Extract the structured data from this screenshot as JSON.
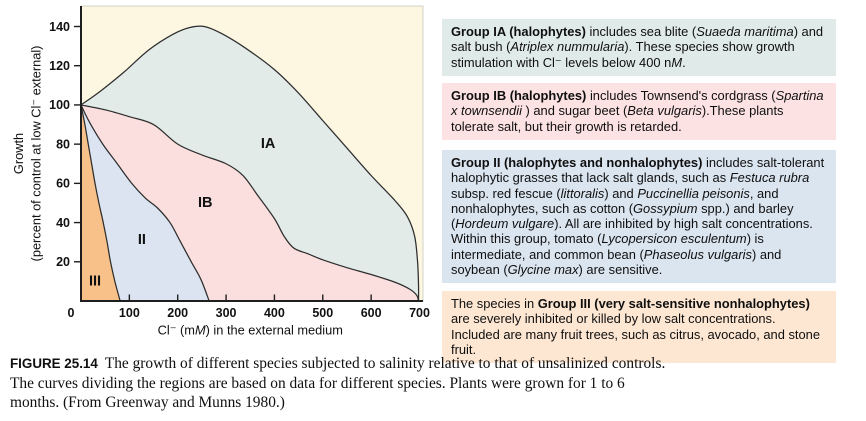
{
  "figure": {
    "caption": [
      {
        "t": "FIGURE 25.14",
        "b": true,
        "sans": true
      },
      {
        "t": "The growth of different species subjected to salinity relative to that of unsalinized controls. The curves dividing the regions are based on data for different species. Plants were grown for 1 to 6 months. (From Greenway and Munns 1980.)"
      }
    ]
  },
  "chart_data": {
    "type": "area",
    "title": "",
    "xlabel_segments": [
      {
        "t": "Cl⁻ (m"
      },
      {
        "t": "M",
        "i": true
      },
      {
        "t": ") in the external medium"
      }
    ],
    "ylabel_line1": "Growth",
    "ylabel_line2": "(percent of control at low Cl⁻ external)",
    "xlim": [
      0,
      700
    ],
    "ylim": [
      0,
      140
    ],
    "x_ticks": [
      0,
      100,
      200,
      300,
      400,
      500,
      600,
      700
    ],
    "y_ticks": [
      20,
      40,
      60,
      80,
      100,
      120,
      140
    ],
    "grid": false,
    "plot_bg": "#fdf6e1",
    "axis_color": "#1e1e1e",
    "curve_color": "#2e2e2e",
    "tick_label_color": "#111111",
    "regions": [
      {
        "label": "IA",
        "fill": "#e2ebe8",
        "label_pos": [
          387,
          80
        ],
        "boundary": [
          [
            0,
            100
          ],
          [
            40,
            107
          ],
          [
            90,
            117
          ],
          [
            140,
            128
          ],
          [
            190,
            136
          ],
          [
            225,
            139.5
          ],
          [
            255,
            140
          ],
          [
            290,
            136.5
          ],
          [
            340,
            129
          ],
          [
            400,
            118
          ],
          [
            450,
            106
          ],
          [
            500,
            92
          ],
          [
            550,
            78
          ],
          [
            600,
            64
          ],
          [
            650,
            51
          ],
          [
            675,
            43
          ],
          [
            690,
            33
          ],
          [
            696,
            20
          ],
          [
            698,
            8
          ],
          [
            698,
            0
          ]
        ]
      },
      {
        "label": "IB",
        "fill": "#fbdfde",
        "label_pos": [
          257,
          50
        ],
        "boundary": [
          [
            0,
            100
          ],
          [
            50,
            97.5
          ],
          [
            100,
            94
          ],
          [
            150,
            90
          ],
          [
            200,
            80
          ],
          [
            250,
            74.5
          ],
          [
            300,
            70
          ],
          [
            335,
            64
          ],
          [
            365,
            54
          ],
          [
            400,
            42
          ],
          [
            420,
            33
          ],
          [
            440,
            27
          ],
          [
            470,
            24
          ],
          [
            500,
            21
          ],
          [
            550,
            17
          ],
          [
            600,
            13.5
          ],
          [
            650,
            9.5
          ],
          [
            680,
            6
          ],
          [
            694,
            3
          ],
          [
            698,
            0
          ]
        ]
      },
      {
        "label": "II",
        "fill": "#dbe4f0",
        "label_pos": [
          126,
          31
        ],
        "boundary": [
          [
            0,
            100
          ],
          [
            18,
            91
          ],
          [
            45,
            80
          ],
          [
            75,
            70
          ],
          [
            105,
            60
          ],
          [
            133,
            52.5
          ],
          [
            158,
            47.5
          ],
          [
            184,
            40
          ],
          [
            204,
            31
          ],
          [
            228,
            20
          ],
          [
            248,
            11
          ],
          [
            265,
            0
          ]
        ]
      },
      {
        "label": "III",
        "fill": "#f8c189",
        "label_pos": [
          29,
          10
        ],
        "boundary": [
          [
            0,
            100
          ],
          [
            8,
            90
          ],
          [
            15,
            80
          ],
          [
            22,
            70
          ],
          [
            29,
            60
          ],
          [
            37,
            50
          ],
          [
            46,
            40
          ],
          [
            54,
            30
          ],
          [
            61,
            20
          ],
          [
            70,
            10
          ],
          [
            81,
            0
          ]
        ]
      }
    ]
  },
  "info_boxes": [
    {
      "id": "group-ia",
      "bg": "#e0eae9",
      "segments": [
        {
          "t": "Group IA (halophytes)",
          "b": true
        },
        {
          "t": " includes sea blite ("
        },
        {
          "t": "Suaeda maritima",
          "i": true
        },
        {
          "t": ") and salt bush ("
        },
        {
          "t": "Atriplex nummularia",
          "i": true
        },
        {
          "t": "). These species show growth stimulation with Cl⁻ levels below 400 n"
        },
        {
          "t": "M",
          "i": true
        },
        {
          "t": "."
        }
      ]
    },
    {
      "id": "group-ib",
      "bg": "#fce2e2",
      "segments": [
        {
          "t": "Group IB (halophytes)",
          "b": true
        },
        {
          "t": " includes Townsend's cordgrass ("
        },
        {
          "t": "Spartina x townsendii",
          "i": true
        },
        {
          "t": " ) and sugar beet ("
        },
        {
          "t": "Beta vulgaris",
          "i": true
        },
        {
          "t": ").These plants tolerate salt, but their growth is retarded."
        }
      ]
    },
    {
      "id": "group-ii",
      "bg": "#dbe5f0",
      "segments": [
        {
          "t": "Group II (halophytes and nonhalophytes)",
          "b": true
        },
        {
          "t": " includes salt-tolerant halophytic grasses that lack salt glands, such as "
        },
        {
          "t": "Festuca rubra",
          "i": true
        },
        {
          "t": " subsp. red fescue ("
        },
        {
          "t": "littoralis",
          "i": true
        },
        {
          "t": ") and "
        },
        {
          "t": "Puccinellia peisonis",
          "i": true
        },
        {
          "t": ", and nonhalophytes, such as cotton ("
        },
        {
          "t": "Gossypium",
          "i": true
        },
        {
          "t": " spp.) and barley ("
        },
        {
          "t": "Hordeum vulgare",
          "i": true
        },
        {
          "t": "). All are inhibited by high salt concentrations. Within this group, tomato ("
        },
        {
          "t": "Lycopersicon esculentum",
          "i": true
        },
        {
          "t": ") is intermediate, and common bean ("
        },
        {
          "t": "Phaseolus vulgaris",
          "i": true
        },
        {
          "t": ") and soybean ("
        },
        {
          "t": "Glycine max",
          "i": true
        },
        {
          "t": ") are sensitive."
        }
      ]
    },
    {
      "id": "group-iii",
      "bg": "#fde7d3",
      "segments": [
        {
          "t": "The species in "
        },
        {
          "t": "Group III (very salt-sensitive nonhalophytes)",
          "b": true
        },
        {
          "t": " are severely inhibited or killed by low salt concentrations. Included are many fruit trees, such as citrus, avocado, and stone fruit."
        }
      ]
    }
  ]
}
